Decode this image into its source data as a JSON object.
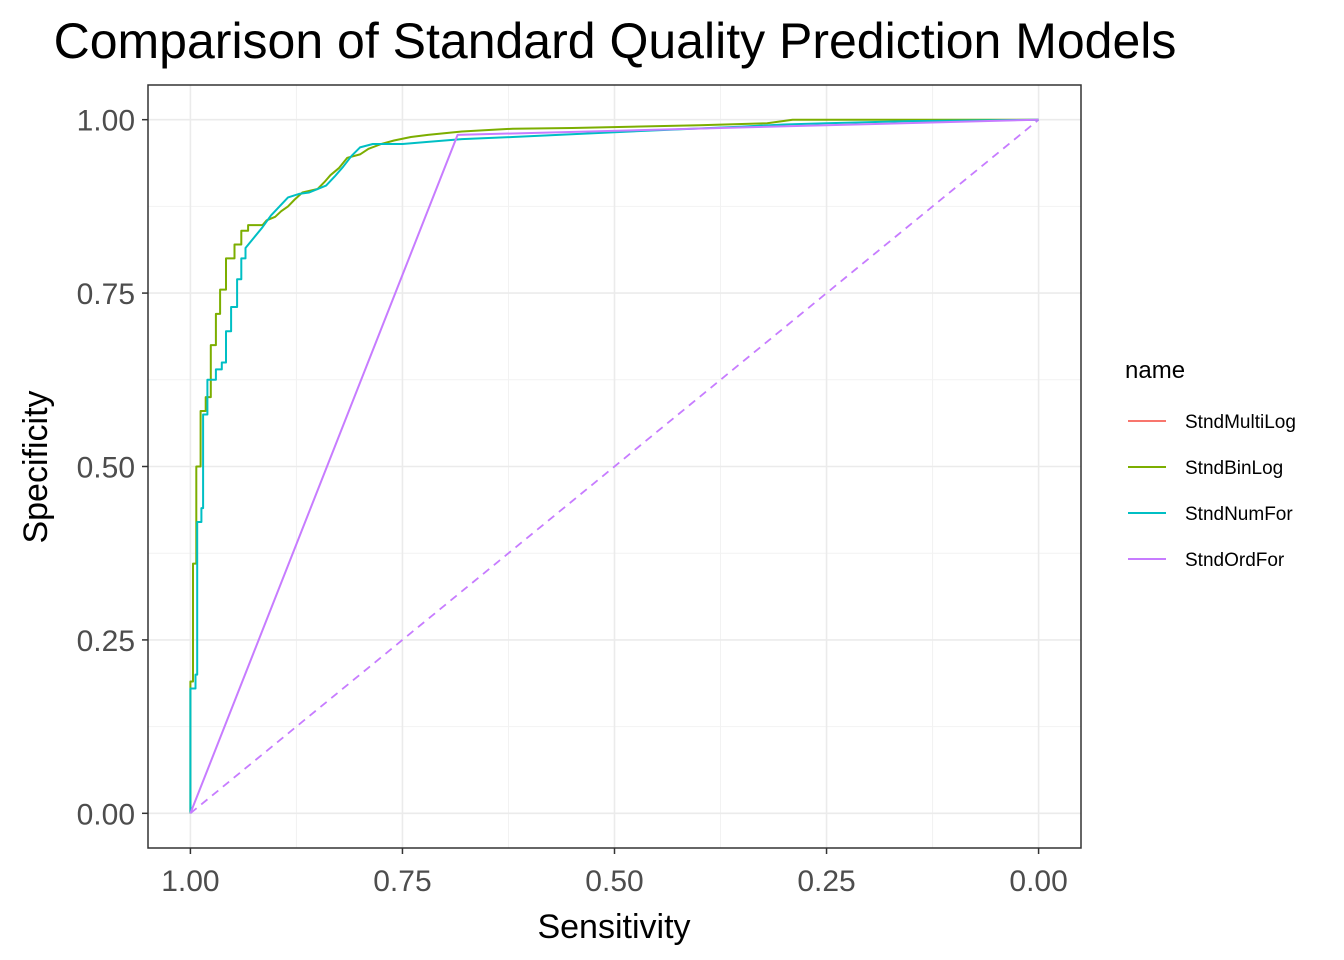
{
  "chart_data": {
    "type": "line",
    "title": "Comparison of Standard Quality Prediction Models",
    "xlabel": "Sensitivity",
    "ylabel": "Specificity",
    "x_reversed": true,
    "xlim": [
      1.05,
      -0.05
    ],
    "ylim": [
      -0.05,
      1.05
    ],
    "x_ticks": [
      1.0,
      0.75,
      0.5,
      0.25,
      0.0
    ],
    "x_tick_labels": [
      "1.00",
      "0.75",
      "0.50",
      "0.25",
      "0.00"
    ],
    "y_ticks": [
      0.0,
      0.25,
      0.5,
      0.75,
      1.0
    ],
    "y_tick_labels": [
      "0.00",
      "0.25",
      "0.50",
      "0.75",
      "1.00"
    ],
    "grid": true,
    "legend_title": "name",
    "legend_position": "right",
    "series": [
      {
        "name": "StndMultiLog",
        "color": "#F8766D",
        "points": []
      },
      {
        "name": "StndBinLog",
        "color": "#7CAE00",
        "points": [
          [
            1.0,
            0.0
          ],
          [
            1.0,
            0.19
          ],
          [
            0.997,
            0.19
          ],
          [
            0.997,
            0.36
          ],
          [
            0.993,
            0.36
          ],
          [
            0.993,
            0.5
          ],
          [
            0.988,
            0.5
          ],
          [
            0.988,
            0.58
          ],
          [
            0.982,
            0.58
          ],
          [
            0.982,
            0.6
          ],
          [
            0.976,
            0.6
          ],
          [
            0.976,
            0.675
          ],
          [
            0.97,
            0.675
          ],
          [
            0.97,
            0.72
          ],
          [
            0.965,
            0.72
          ],
          [
            0.965,
            0.755
          ],
          [
            0.958,
            0.755
          ],
          [
            0.958,
            0.8
          ],
          [
            0.948,
            0.8
          ],
          [
            0.948,
            0.82
          ],
          [
            0.94,
            0.82
          ],
          [
            0.94,
            0.84
          ],
          [
            0.932,
            0.84
          ],
          [
            0.932,
            0.848
          ],
          [
            0.915,
            0.848
          ],
          [
            0.91,
            0.855
          ],
          [
            0.9,
            0.86
          ],
          [
            0.893,
            0.868
          ],
          [
            0.885,
            0.875
          ],
          [
            0.877,
            0.885
          ],
          [
            0.868,
            0.895
          ],
          [
            0.85,
            0.9
          ],
          [
            0.842,
            0.91
          ],
          [
            0.835,
            0.92
          ],
          [
            0.825,
            0.93
          ],
          [
            0.815,
            0.945
          ],
          [
            0.8,
            0.95
          ],
          [
            0.79,
            0.958
          ],
          [
            0.775,
            0.965
          ],
          [
            0.76,
            0.97
          ],
          [
            0.74,
            0.975
          ],
          [
            0.72,
            0.978
          ],
          [
            0.68,
            0.983
          ],
          [
            0.62,
            0.987
          ],
          [
            0.55,
            0.988
          ],
          [
            0.4,
            0.992
          ],
          [
            0.32,
            0.995
          ],
          [
            0.29,
            1.0
          ],
          [
            0.0,
            1.0
          ]
        ]
      },
      {
        "name": "StndNumFor",
        "color": "#00BFC4",
        "points": [
          [
            1.0,
            0.0
          ],
          [
            1.0,
            0.18
          ],
          [
            0.994,
            0.18
          ],
          [
            0.994,
            0.2
          ],
          [
            0.992,
            0.2
          ],
          [
            0.992,
            0.42
          ],
          [
            0.987,
            0.42
          ],
          [
            0.987,
            0.44
          ],
          [
            0.985,
            0.44
          ],
          [
            0.985,
            0.575
          ],
          [
            0.98,
            0.575
          ],
          [
            0.98,
            0.625
          ],
          [
            0.97,
            0.625
          ],
          [
            0.97,
            0.64
          ],
          [
            0.963,
            0.64
          ],
          [
            0.963,
            0.65
          ],
          [
            0.958,
            0.65
          ],
          [
            0.958,
            0.695
          ],
          [
            0.952,
            0.695
          ],
          [
            0.952,
            0.73
          ],
          [
            0.945,
            0.73
          ],
          [
            0.945,
            0.77
          ],
          [
            0.94,
            0.77
          ],
          [
            0.94,
            0.8
          ],
          [
            0.935,
            0.8
          ],
          [
            0.935,
            0.815
          ],
          [
            0.925,
            0.83
          ],
          [
            0.915,
            0.845
          ],
          [
            0.905,
            0.862
          ],
          [
            0.895,
            0.875
          ],
          [
            0.885,
            0.888
          ],
          [
            0.872,
            0.893
          ],
          [
            0.86,
            0.895
          ],
          [
            0.84,
            0.905
          ],
          [
            0.83,
            0.918
          ],
          [
            0.82,
            0.932
          ],
          [
            0.81,
            0.948
          ],
          [
            0.8,
            0.96
          ],
          [
            0.785,
            0.965
          ],
          [
            0.75,
            0.965
          ],
          [
            0.72,
            0.968
          ],
          [
            0.68,
            0.972
          ],
          [
            0.62,
            0.975
          ],
          [
            0.5,
            0.982
          ],
          [
            0.35,
            0.99
          ],
          [
            0.3,
            0.993
          ],
          [
            0.25,
            0.995
          ],
          [
            0.15,
            0.998
          ],
          [
            0.0,
            1.0
          ]
        ]
      },
      {
        "name": "StndOrdFor",
        "color": "#C77CFF",
        "points": [
          [
            1.0,
            0.0
          ],
          [
            0.685,
            0.978
          ],
          [
            0.0,
            1.0
          ]
        ]
      }
    ],
    "reference_line": {
      "points": [
        [
          1.0,
          0.0
        ],
        [
          0.0,
          1.0
        ]
      ],
      "color": "#C77CFF",
      "style": "dashed"
    }
  }
}
